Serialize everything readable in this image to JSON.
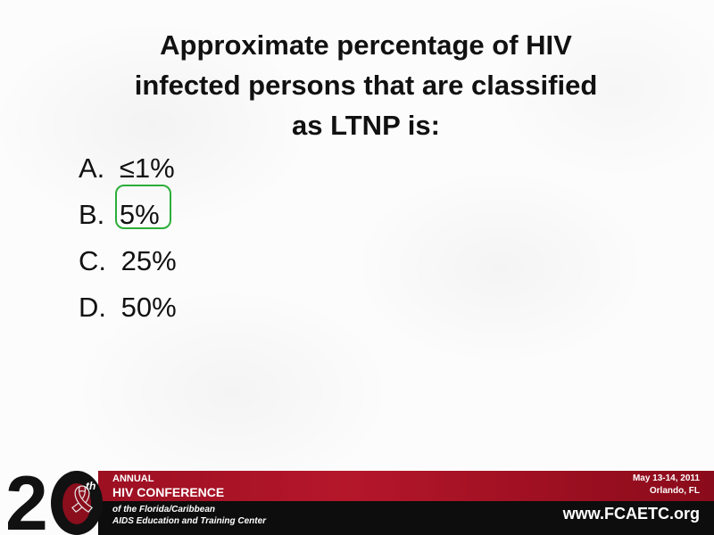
{
  "title_lines": [
    "Approximate percentage of HIV",
    "infected persons that are classified",
    "as LTNP is:"
  ],
  "options": [
    {
      "letter": "A.",
      "value": "≤1%"
    },
    {
      "letter": "B.",
      "value": "5%"
    },
    {
      "letter": "C.",
      "value": "25%"
    },
    {
      "letter": "D.",
      "value": "50%"
    }
  ],
  "highlighted_option": "B",
  "footer": {
    "logo_number": "2",
    "logo_suffix": "th",
    "annual": "ANNUAL",
    "conference": "HIV CONFERENCE",
    "subtitle_1": "of the Florida/Caribbean",
    "subtitle_2": "AIDS Education and Training Center",
    "dates": "May 13-14, 2011",
    "location": "Orlando, FL",
    "url": "www.FCAETC.org"
  },
  "colors": {
    "highlight": "#2dae3a",
    "brand_red": "#b5162a",
    "brand_black": "#0d0d0d"
  }
}
